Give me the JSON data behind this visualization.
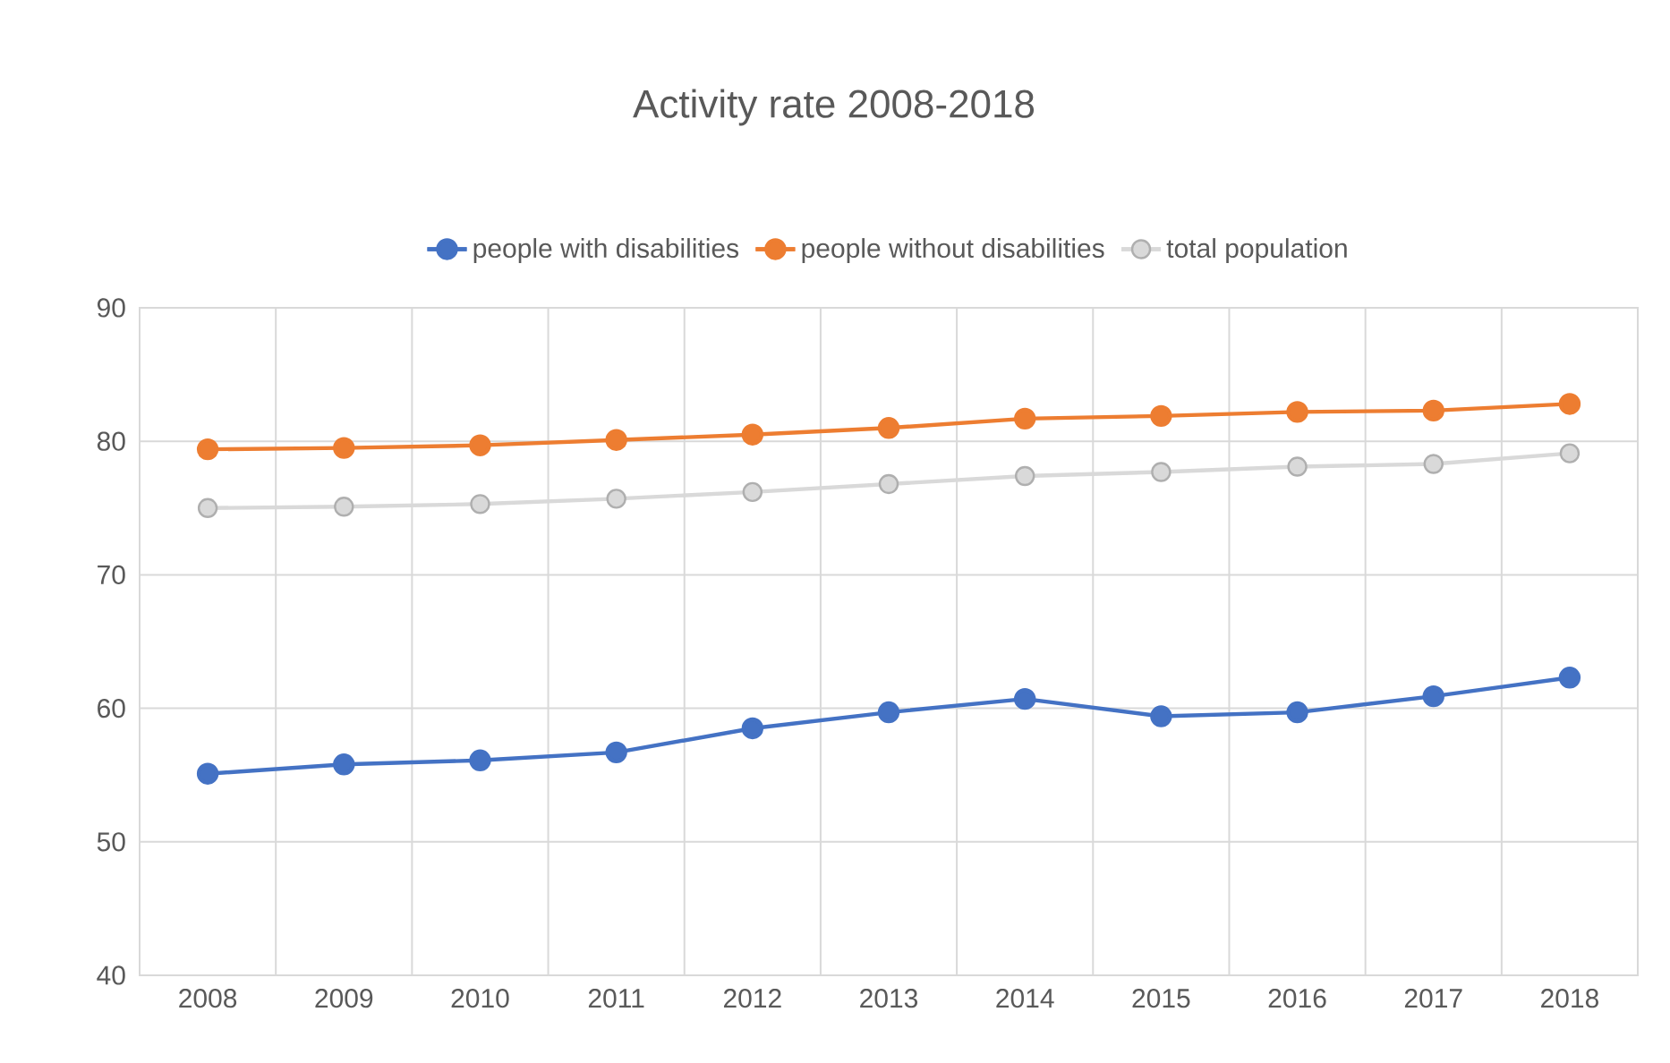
{
  "chart_data": {
    "type": "line",
    "title": "Activity rate 2008-2018",
    "categories": [
      "2008",
      "2009",
      "2010",
      "2011",
      "2012",
      "2013",
      "2014",
      "2015",
      "2016",
      "2017",
      "2018"
    ],
    "series": [
      {
        "name": "people with disabilities",
        "color": "#4472c4",
        "values": [
          55.1,
          55.8,
          56.1,
          56.7,
          58.5,
          59.7,
          60.7,
          59.4,
          59.7,
          60.9,
          62.3
        ]
      },
      {
        "name": "people without disabilities",
        "color": "#ed7d31",
        "values": [
          79.4,
          79.5,
          79.7,
          80.1,
          80.5,
          81.0,
          81.7,
          81.9,
          82.2,
          82.3,
          82.8
        ]
      },
      {
        "name": "total population",
        "color": "#d9d9d9",
        "values": [
          75.0,
          75.1,
          75.3,
          75.7,
          76.2,
          76.8,
          77.4,
          77.7,
          78.1,
          78.3,
          79.1
        ]
      }
    ],
    "ylim": [
      40,
      90
    ],
    "yticks": [
      40,
      50,
      60,
      70,
      80,
      90
    ],
    "grid": true,
    "legend": "top",
    "marker": "circle",
    "line_style": "solid"
  }
}
